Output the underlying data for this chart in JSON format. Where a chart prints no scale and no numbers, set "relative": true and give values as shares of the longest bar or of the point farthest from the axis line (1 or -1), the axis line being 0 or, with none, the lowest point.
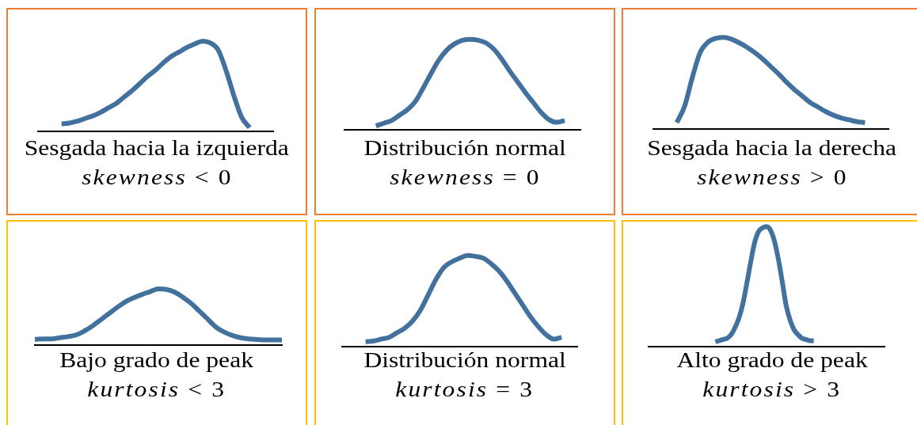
{
  "chart_data": [
    {
      "type": "line",
      "relative": true,
      "xlabel": "Sesgada hacia la izquierda",
      "annotations": [
        "skewness < 0"
      ],
      "color": "#41719c",
      "categories": [
        null,
        null,
        null,
        null,
        null,
        null,
        null,
        null,
        null,
        null,
        null,
        null,
        null,
        null,
        null,
        null,
        null,
        null,
        null,
        null,
        null,
        null,
        null,
        null,
        null,
        null,
        null,
        null,
        null,
        null,
        null
      ],
      "values": [
        null,
        null,
        null,
        0.08,
        0.09,
        0.11,
        0.14,
        0.17,
        0.21,
        0.26,
        0.31,
        0.38,
        0.45,
        0.53,
        0.61,
        0.68,
        0.76,
        0.83,
        0.88,
        0.93,
        0.97,
        1,
        0.98,
        0.9,
        0.67,
        0.39,
        0.15,
        0.04,
        null,
        null,
        null
      ]
    },
    {
      "type": "line",
      "relative": true,
      "xlabel": "Distribución normal",
      "annotations": [
        "skewness = 0"
      ],
      "color": "#41719c",
      "categories": [
        null,
        null,
        null,
        null,
        null,
        null,
        null,
        null,
        null,
        null,
        null,
        null,
        null,
        null,
        null,
        null,
        null,
        null,
        null,
        null,
        null,
        null,
        null,
        null,
        null,
        null,
        null,
        null,
        null,
        null,
        null
      ],
      "values": [
        null,
        null,
        null,
        null,
        0.04,
        0.07,
        0.1,
        0.16,
        0.22,
        0.31,
        0.46,
        0.62,
        0.77,
        0.88,
        0.95,
        0.99,
        1,
        0.99,
        0.96,
        0.89,
        0.78,
        0.65,
        0.53,
        0.41,
        0.3,
        0.19,
        0.11,
        0.08,
        0.1,
        null,
        null
      ]
    },
    {
      "type": "line",
      "relative": true,
      "xlabel": "Sesgada hacia la derecha",
      "annotations": [
        "skewness > 0"
      ],
      "color": "#41719c",
      "categories": [
        null,
        null,
        null,
        null,
        null,
        null,
        null,
        null,
        null,
        null,
        null,
        null,
        null,
        null,
        null,
        null,
        null,
        null,
        null,
        null,
        null,
        null,
        null,
        null,
        null,
        null,
        null,
        null,
        null,
        null,
        null
      ],
      "values": [
        null,
        null,
        null,
        0.07,
        0.25,
        0.57,
        0.84,
        0.95,
        0.99,
        1,
        0.98,
        0.94,
        0.89,
        0.83,
        0.76,
        0.68,
        0.6,
        0.51,
        0.43,
        0.36,
        0.29,
        0.24,
        0.19,
        0.15,
        0.12,
        0.1,
        0.08,
        0.07,
        null,
        null,
        null
      ]
    },
    {
      "type": "line",
      "relative": true,
      "xlabel": "Bajo grado de peak",
      "annotations": [
        "kurtosis < 3"
      ],
      "color": "#41719c",
      "categories": [
        null,
        null,
        null,
        null,
        null,
        null,
        null,
        null,
        null,
        null,
        null,
        null,
        null,
        null,
        null,
        null,
        null,
        null,
        null,
        null,
        null,
        null,
        null,
        null,
        null,
        null,
        null,
        null,
        null,
        null,
        null
      ],
      "values": [
        0.1,
        0.11,
        0.11,
        0.13,
        0.15,
        0.18,
        0.25,
        0.34,
        0.45,
        0.56,
        0.67,
        0.77,
        0.84,
        0.9,
        0.95,
        1,
        0.99,
        0.94,
        0.85,
        0.74,
        0.6,
        0.46,
        0.32,
        0.23,
        0.17,
        0.13,
        0.11,
        0.1,
        0.09,
        0.09,
        0.09
      ]
    },
    {
      "type": "line",
      "relative": true,
      "xlabel": "Distribución normal",
      "annotations": [
        "kurtosis = 3"
      ],
      "color": "#41719c",
      "categories": [
        null,
        null,
        null,
        null,
        null,
        null,
        null,
        null,
        null,
        null,
        null,
        null,
        null,
        null,
        null,
        null,
        null,
        null,
        null,
        null,
        null,
        null,
        null,
        null,
        null,
        null,
        null,
        null,
        null,
        null,
        null
      ],
      "values": [
        null,
        null,
        null,
        0.05,
        0.06,
        0.08,
        0.1,
        0.15,
        0.2,
        0.28,
        0.4,
        0.57,
        0.74,
        0.87,
        0.93,
        0.97,
        1,
        0.99,
        0.97,
        0.91,
        0.83,
        0.72,
        0.59,
        0.46,
        0.33,
        0.22,
        0.13,
        0.08,
        0.1,
        null,
        null
      ]
    },
    {
      "type": "line",
      "relative": true,
      "xlabel": "Alto grado de peak",
      "annotations": [
        "kurtosis > 3"
      ],
      "color": "#41719c",
      "categories": [
        null,
        null,
        null,
        null,
        null,
        null,
        null,
        null,
        null,
        null,
        null,
        null,
        null,
        null,
        null,
        null,
        null,
        null,
        null,
        null,
        null,
        null,
        null,
        null,
        null,
        null,
        null,
        null,
        null,
        null,
        null,
        null,
        null,
        null,
        null,
        null,
        null,
        null,
        null,
        null,
        null,
        null,
        null,
        null,
        null,
        null,
        null,
        null,
        null,
        null,
        null,
        null,
        null,
        null,
        null,
        null,
        null,
        null,
        null,
        null,
        null
      ],
      "values": [
        null,
        null,
        null,
        null,
        null,
        null,
        null,
        null,
        null,
        null,
        null,
        null,
        null,
        null,
        null,
        null,
        null,
        0.04,
        0.05,
        0.06,
        0.07,
        0.1,
        0.16,
        0.24,
        0.36,
        0.53,
        0.71,
        0.87,
        0.96,
        0.99,
        1,
        0.97,
        0.88,
        0.73,
        0.54,
        0.34,
        0.22,
        0.14,
        0.1,
        0.07,
        0.06,
        0.05,
        0.05,
        null,
        null,
        null,
        null,
        null,
        null,
        null,
        null,
        null,
        null,
        null,
        null,
        null,
        null,
        null,
        null,
        null,
        null
      ]
    }
  ]
}
